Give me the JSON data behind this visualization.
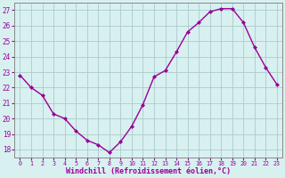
{
  "x": [
    0,
    1,
    2,
    3,
    4,
    5,
    6,
    7,
    8,
    9,
    10,
    11,
    12,
    13,
    14,
    15,
    16,
    17,
    18,
    19,
    20,
    21,
    22,
    23
  ],
  "y": [
    22.8,
    22.0,
    21.5,
    20.3,
    20.0,
    19.2,
    18.6,
    18.3,
    17.8,
    18.5,
    19.5,
    20.9,
    22.7,
    23.1,
    24.3,
    25.6,
    26.2,
    26.9,
    27.1,
    27.1,
    26.2,
    24.6,
    23.3,
    22.2
  ],
  "line_color": "#990099",
  "marker": "D",
  "markersize": 2,
  "linewidth": 1.0,
  "bg_color": "#d8f0f0",
  "grid_color": "#aacccc",
  "xlabel": "Windchill (Refroidissement éolien,°C)",
  "xlabel_color": "#990099",
  "ylabel_ticks": [
    18,
    19,
    20,
    21,
    22,
    23,
    24,
    25,
    26,
    27
  ],
  "ylim": [
    17.5,
    27.5
  ],
  "xlim": [
    -0.5,
    23.5
  ],
  "xtick_labels": [
    "0",
    "1",
    "2",
    "3",
    "4",
    "5",
    "6",
    "7",
    "8",
    "9",
    "10",
    "11",
    "12",
    "13",
    "14",
    "15",
    "16",
    "17",
    "18",
    "19",
    "20",
    "21",
    "22",
    "23"
  ],
  "tick_color": "#990099",
  "spine_color": "#888888"
}
